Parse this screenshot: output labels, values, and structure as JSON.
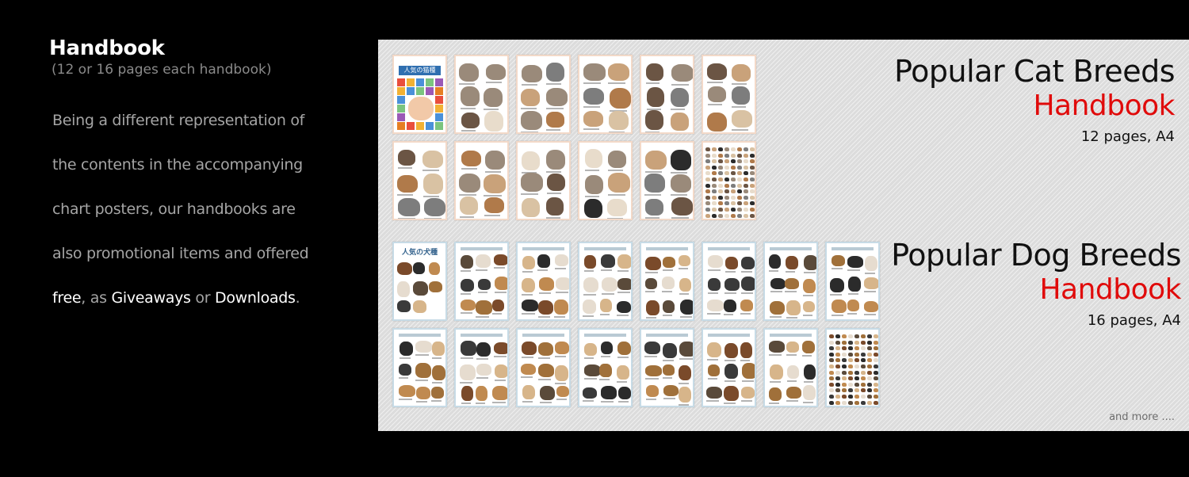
{
  "left": {
    "title": "Handbook",
    "subtitle": "(12 or 16 pages each handbook)",
    "body": {
      "line1": "Being a different representation of",
      "line2": "the contents in the accompanying",
      "line3": "chart posters, our handbooks are",
      "line4": "also promotional items and offered",
      "free": "free",
      "sep1": ", as ",
      "giveaways": "Giveaways",
      "sep2": " or ",
      "downloads": "Downloads",
      "end": "."
    }
  },
  "cat_handbook": {
    "title": "Popular Cat Breeds",
    "subtitle": "Handbook",
    "pages": "12 pages, A4",
    "cover_text": "人気の猫種",
    "page_count": 12
  },
  "dog_handbook": {
    "title": "Popular Dog Breeds",
    "subtitle": "Handbook",
    "pages": "16 pages, A4",
    "cover_text": "人気の犬種",
    "page_count": 16
  },
  "more_text": "and more ....",
  "colors": {
    "accent_red": "#e00b0b",
    "panel_bg": "#dcdcdc",
    "page_bg": "#000000"
  }
}
